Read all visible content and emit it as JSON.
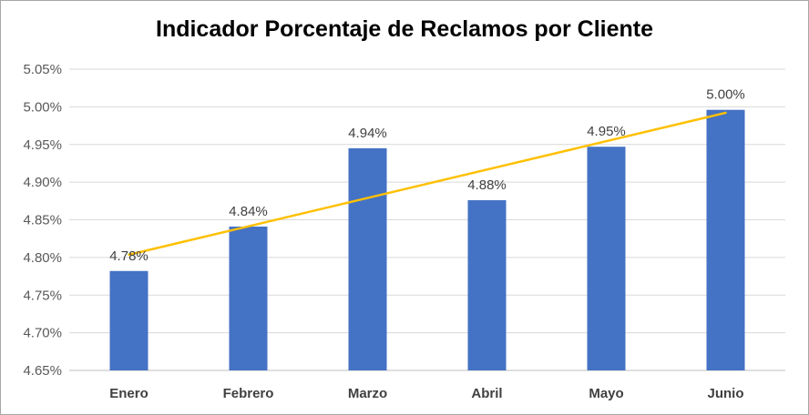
{
  "chart_data": {
    "type": "bar",
    "title": "Indicador Porcentaje de Reclamos por Cliente",
    "xlabel": "",
    "ylabel": "",
    "categories": [
      "Enero",
      "Febrero",
      "Marzo",
      "Abril",
      "Mayo",
      "Junio"
    ],
    "series": [
      {
        "values": [
          4.782,
          4.841,
          4.945,
          4.876,
          4.947,
          4.996
        ],
        "labels": [
          "4.78%",
          "4.84%",
          "4.94%",
          "4.88%",
          "4.95%",
          "5.00%"
        ],
        "color": "#4472c4"
      }
    ],
    "trendline": {
      "type": "linear",
      "color": "#ffc000"
    },
    "ylim": [
      4.65,
      5.05
    ],
    "yticks": [
      4.65,
      4.7,
      4.75,
      4.8,
      4.85,
      4.9,
      4.95,
      5.0,
      5.05
    ],
    "ytick_labels": [
      "4.65%",
      "4.70%",
      "4.75%",
      "4.80%",
      "4.85%",
      "4.90%",
      "4.95%",
      "5.00%",
      "5.05%"
    ],
    "grid": true,
    "legend": "none"
  }
}
